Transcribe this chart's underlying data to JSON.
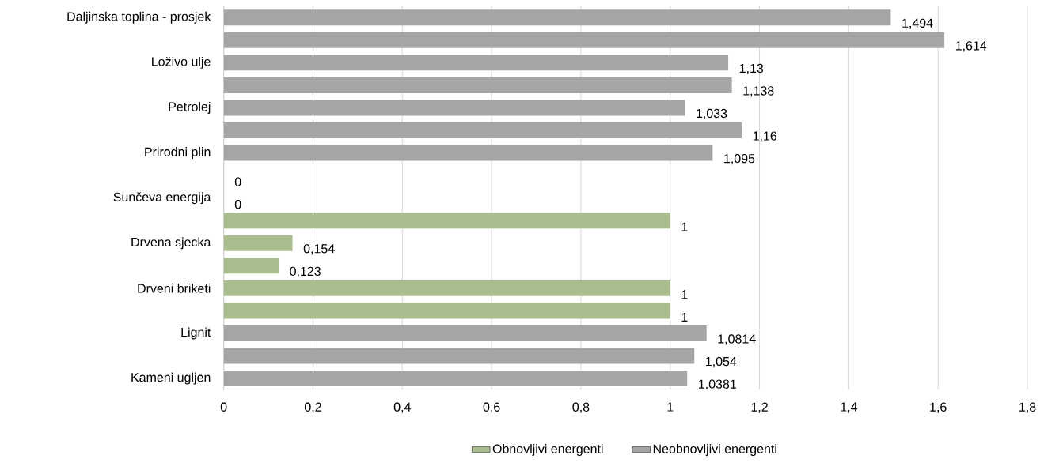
{
  "chart_data": {
    "type": "bar",
    "orientation": "horizontal",
    "categories": [
      "Daljinska toplina - prosjek",
      null,
      "Loživo ulje",
      null,
      "Petrolej",
      null,
      "Prirodni plin",
      null,
      "Sunčeva energija",
      null,
      "Drvena sjecka",
      null,
      "Drveni briketi",
      null,
      "Lignit",
      null,
      "Kameni ugljen"
    ],
    "series": [
      {
        "name": "Obnovljivi energenti",
        "color": "#a9bd8f",
        "values": [
          null,
          null,
          null,
          null,
          null,
          null,
          null,
          0,
          0,
          1,
          0.154,
          0.123,
          1,
          1,
          null,
          null,
          null
        ],
        "value_labels": [
          null,
          null,
          null,
          null,
          null,
          null,
          null,
          "0",
          "0",
          "1",
          "0,154",
          "0,123",
          "1",
          "1",
          null,
          null,
          null
        ]
      },
      {
        "name": "Neobnovljivi energenti",
        "color": "#a5a5a5",
        "values": [
          1.494,
          1.614,
          1.13,
          1.138,
          1.033,
          1.16,
          1.095,
          null,
          null,
          null,
          null,
          null,
          null,
          null,
          1.0814,
          1.054,
          1.0381
        ],
        "value_labels": [
          "1,494",
          "1,614",
          "1,13",
          "1,138",
          "1,033",
          "1,16",
          "1,095",
          null,
          null,
          null,
          null,
          null,
          null,
          null,
          "1,0814",
          "1,054",
          "1,0381"
        ]
      }
    ],
    "xlim": [
      0,
      1.8
    ],
    "xticks": [
      0,
      {
        "value": 0.2,
        "label": "0,2"
      },
      {
        "value": 0.4,
        "label": "0,4"
      },
      {
        "value": 0.6,
        "label": "0,6"
      },
      {
        "value": 0.8,
        "label": "0,8"
      },
      1,
      {
        "value": 1.2,
        "label": "1,2"
      },
      {
        "value": 1.4,
        "label": "1,4"
      },
      {
        "value": 1.6,
        "label": "1,6"
      },
      {
        "value": 1.8,
        "label": "1,8"
      }
    ],
    "grid": "x",
    "legend": "bottom"
  }
}
